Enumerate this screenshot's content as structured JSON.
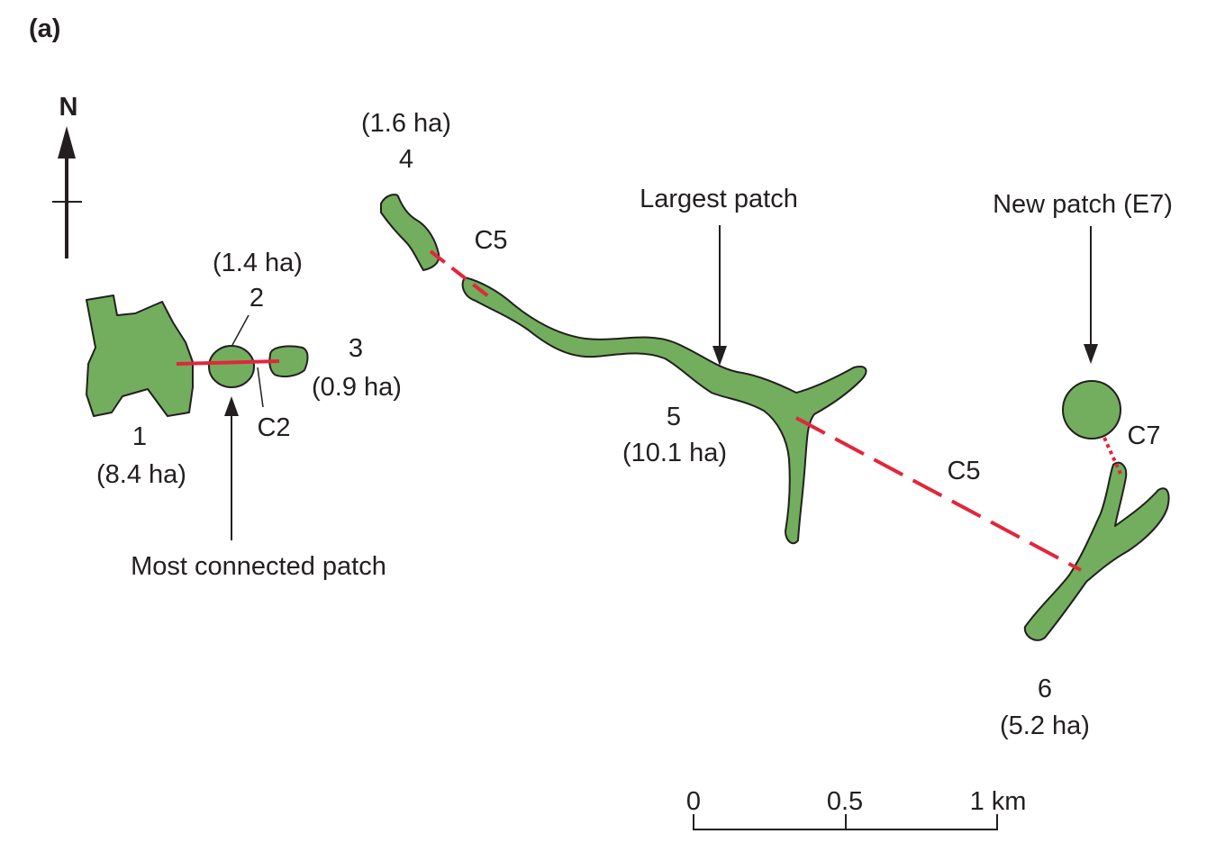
{
  "panel_label": "(a)",
  "colors": {
    "patch_fill": "#72ae5d",
    "outline": "#231f20",
    "link": "#e2263b"
  },
  "north": {
    "label": "N"
  },
  "patches": {
    "p1": {
      "id": "1",
      "area": "(8.4 ha)"
    },
    "p2": {
      "id": "2",
      "area": "(1.4 ha)"
    },
    "p3": {
      "id": "3",
      "area": "(0.9 ha)"
    },
    "p4": {
      "id": "4",
      "area": "(1.6 ha)"
    },
    "p5": {
      "id": "5",
      "area": "(10.1 ha)"
    },
    "p6": {
      "id": "6",
      "area": "(5.2 ha)"
    }
  },
  "links": {
    "c2": "C2",
    "c5_north": "C5",
    "c5_east": "C5",
    "c7": "C7"
  },
  "annotations": {
    "most_connected": "Most connected patch",
    "largest": "Largest  patch",
    "new_patch": "New  patch (E7)"
  },
  "scale_bar": {
    "tick_0": "0",
    "tick_mid": "0.5",
    "tick_end": "1 km"
  }
}
